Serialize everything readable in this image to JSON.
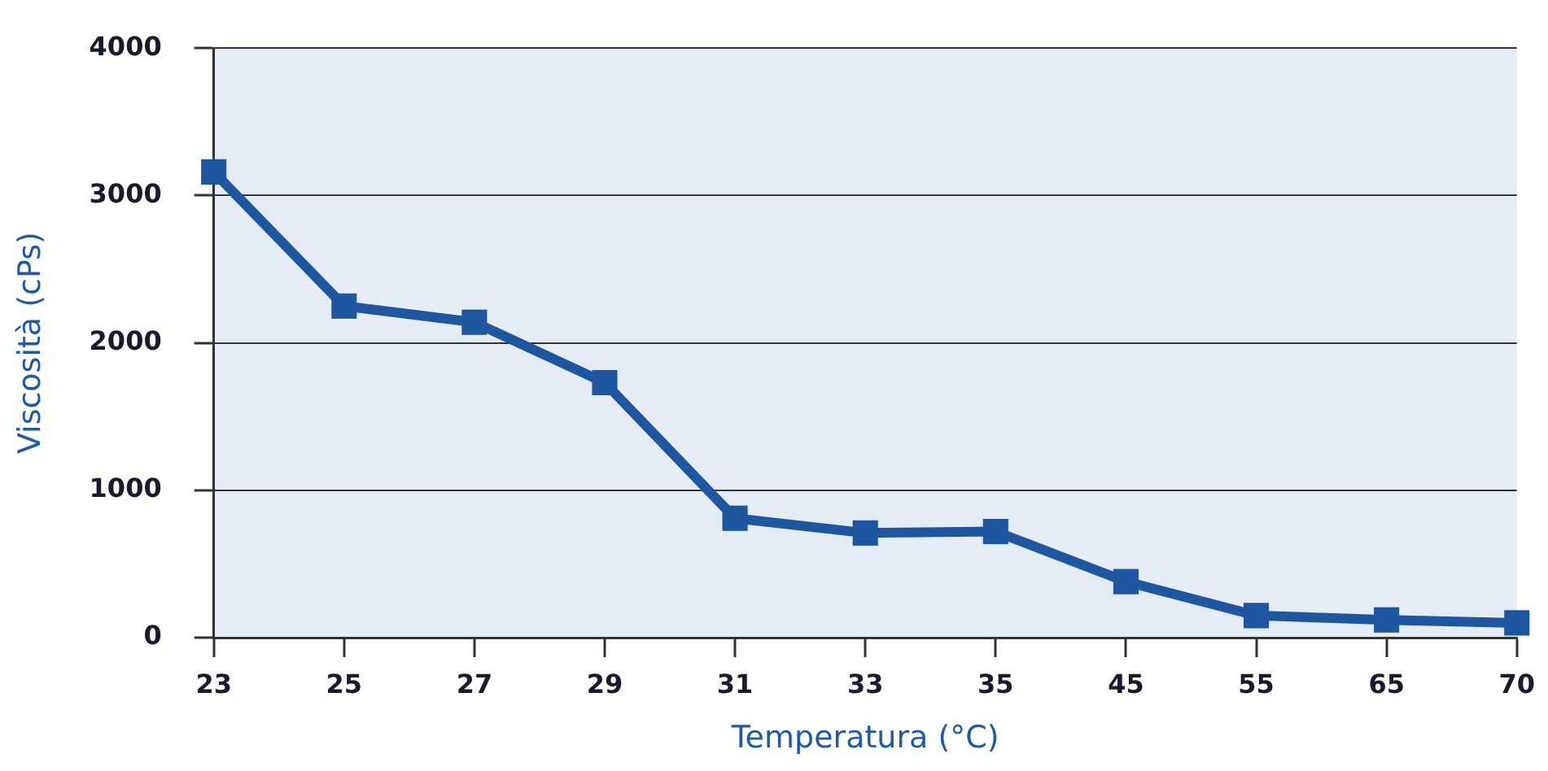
{
  "chart_data": {
    "type": "line",
    "xlabel": "Temperatura (°C)",
    "ylabel": "Viscosità (cPs)",
    "categories": [
      "23",
      "25",
      "27",
      "29",
      "31",
      "33",
      "35",
      "45",
      "55",
      "65",
      "70"
    ],
    "series": [
      {
        "color": "#1f56a0",
        "values": [
          3160,
          2250,
          2140,
          1730,
          810,
          710,
          720,
          380,
          150,
          120,
          100
        ]
      }
    ],
    "ylim": [
      0,
      4000
    ],
    "yticks": [
      0,
      1000,
      2000,
      3000,
      4000
    ],
    "grid": "y",
    "legend": false,
    "marker": "square",
    "line_style": "solid"
  }
}
